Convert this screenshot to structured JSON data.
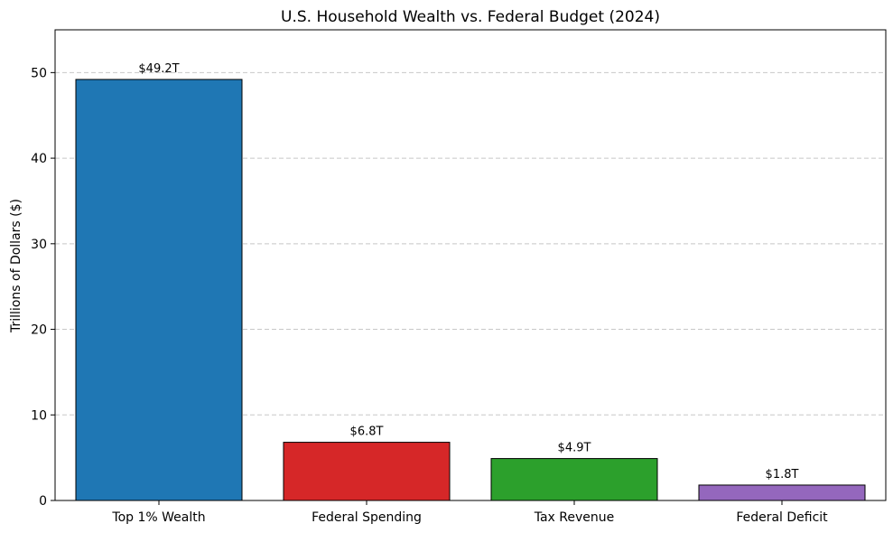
{
  "chart_data": {
    "type": "bar",
    "title": "U.S. Household Wealth vs. Federal Budget (2024)",
    "xlabel": "",
    "ylabel": "Trillions of Dollars ($)",
    "ylim": [
      0,
      55
    ],
    "yticks": [
      0,
      10,
      20,
      30,
      40,
      50
    ],
    "grid": "y-dashed",
    "categories": [
      "Top 1% Wealth",
      "Federal Spending",
      "Tax Revenue",
      "Federal Deficit"
    ],
    "values": [
      49.2,
      6.8,
      4.9,
      1.8
    ],
    "data_labels": [
      "$49.2T",
      "$6.8T",
      "$4.9T",
      "$1.8T"
    ],
    "colors": [
      "#1f77b4",
      "#d62728",
      "#2ca02c",
      "#9467bd"
    ]
  }
}
